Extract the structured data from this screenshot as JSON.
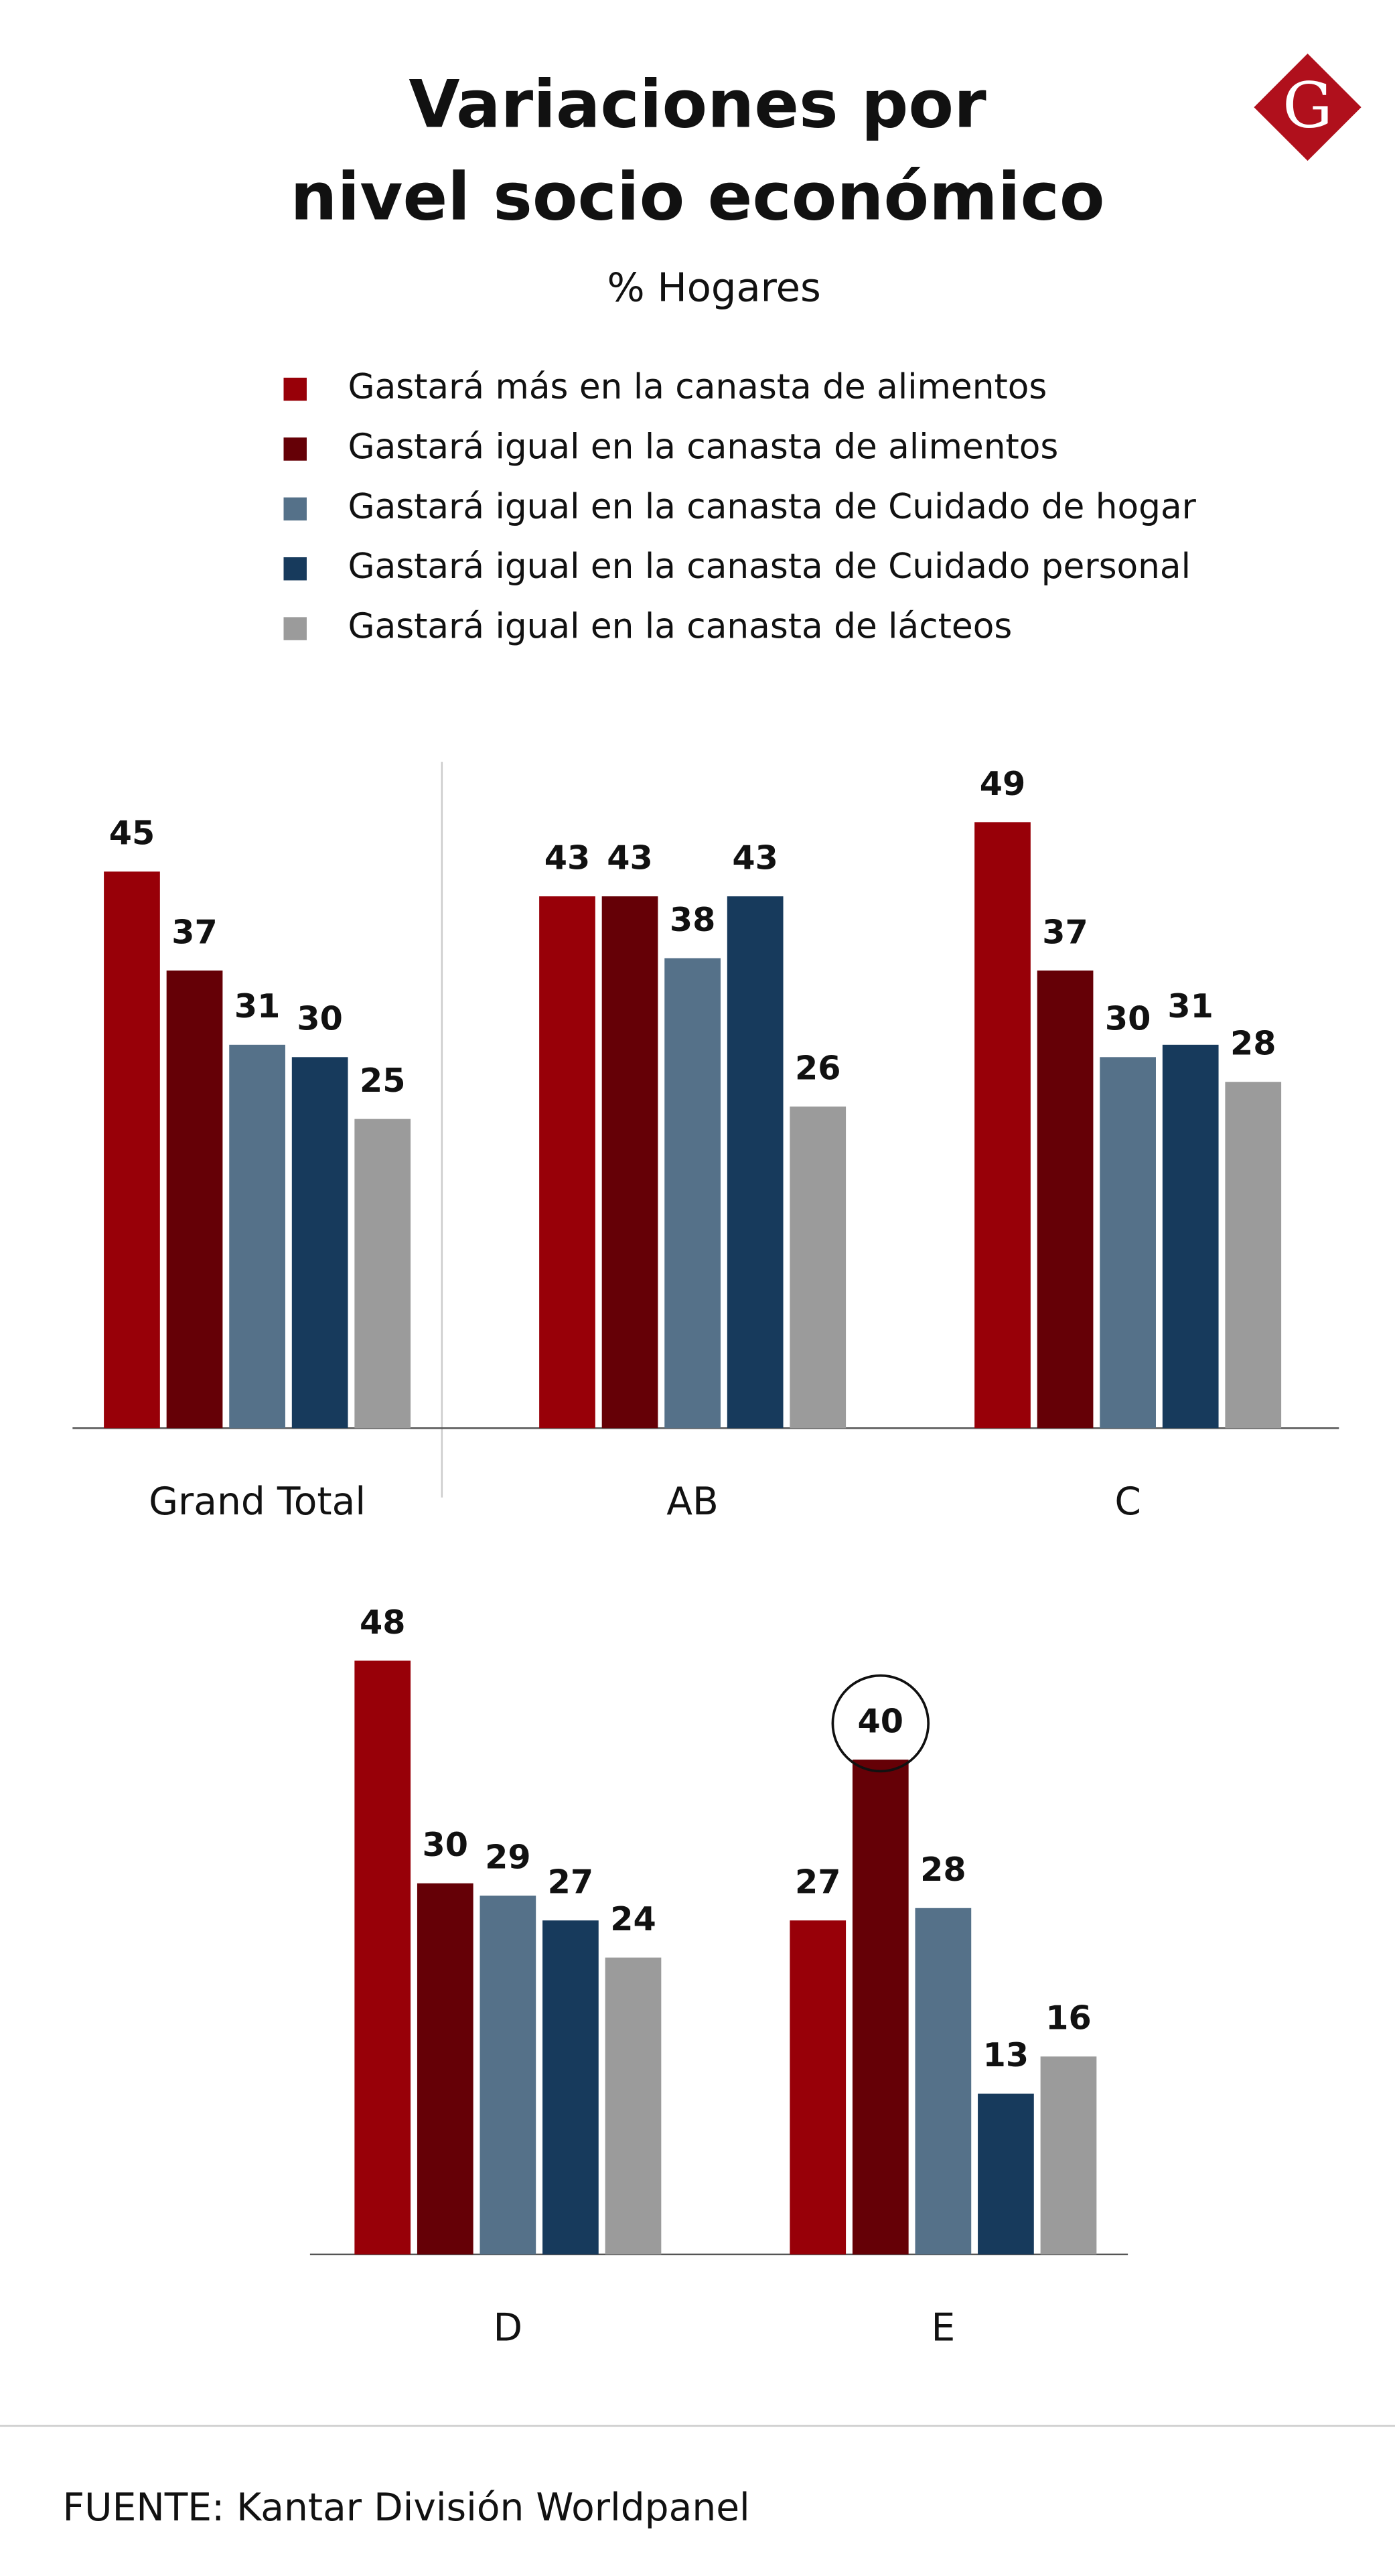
{
  "chart_data": {
    "type": "bar",
    "title": [
      "Variaciones por",
      "nivel socio económico"
    ],
    "subtitle": "% Hogares",
    "logo": "G",
    "categories": [
      "Grand Total",
      "AB",
      "C",
      "D",
      "E"
    ],
    "series": [
      {
        "name": "Gastará más en la canasta de alimentos",
        "color": "#980008",
        "values": [
          45,
          43,
          49,
          48,
          27
        ]
      },
      {
        "name": "Gastará igual en la canasta de alimentos",
        "color": "#650006",
        "values": [
          37,
          43,
          37,
          30,
          40
        ]
      },
      {
        "name": "Gastará igual en la canasta de Cuidado de hogar",
        "color": "#557189",
        "values": [
          31,
          38,
          30,
          29,
          28
        ]
      },
      {
        "name": "Gastará igual en la canasta de Cuidado personal",
        "color": "#173a5c",
        "values": [
          30,
          43,
          31,
          27,
          13
        ]
      },
      {
        "name": "Gastará igual en la canasta de lácteos",
        "color": "#9b9b9b",
        "values": [
          25,
          26,
          28,
          24,
          16
        ]
      }
    ],
    "source": "FUENTE: Kantar División Worldpanel"
  }
}
